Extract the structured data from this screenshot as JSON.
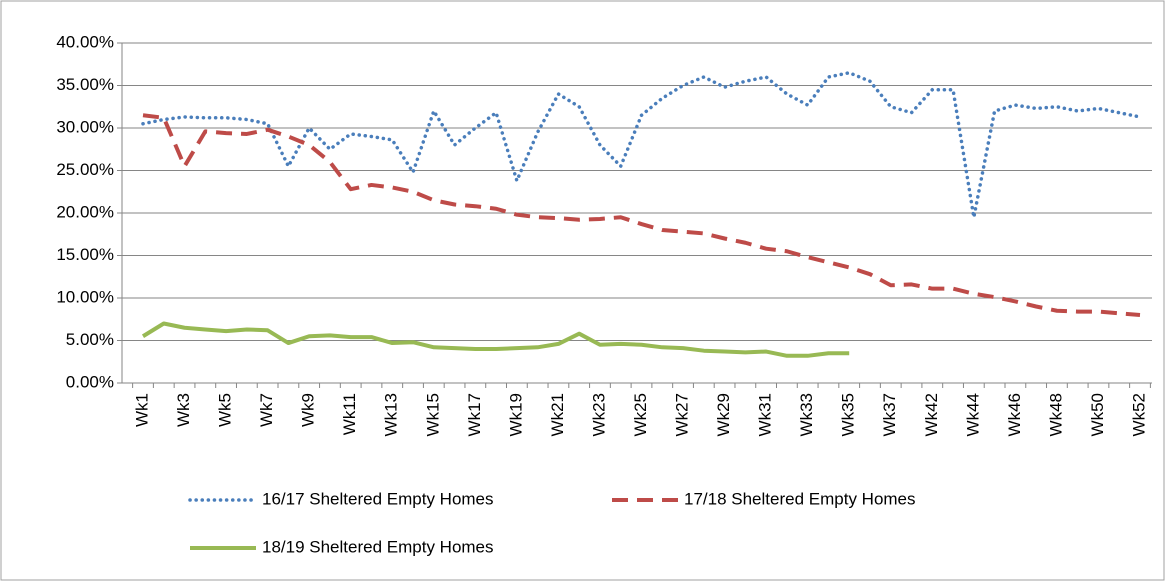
{
  "chart_data": {
    "type": "line",
    "categories": [
      "Wk1",
      null,
      "Wk3",
      null,
      "Wk5",
      null,
      "Wk7",
      null,
      "Wk9",
      null,
      "Wk11",
      null,
      "Wk13",
      null,
      "Wk15",
      null,
      "Wk17",
      null,
      "Wk19",
      null,
      "Wk21",
      null,
      "Wk23",
      null,
      "Wk25",
      null,
      "Wk27",
      null,
      "Wk29",
      null,
      "Wk31",
      null,
      "Wk33",
      null,
      "Wk35",
      null,
      "Wk37",
      null,
      "Wk42",
      null,
      "Wk44",
      null,
      "Wk46",
      null,
      "Wk48",
      null,
      "Wk50",
      null,
      "Wk52"
    ],
    "series": [
      {
        "name": "16/17 Sheltered Empty Homes",
        "color": "#4a7ebb",
        "style": "dotted",
        "values": [
          30.5,
          31.0,
          31.3,
          31.2,
          31.2,
          31.0,
          30.5,
          25.5,
          30.0,
          27.5,
          29.3,
          29.0,
          28.6,
          24.8,
          32.0,
          28.0,
          30.0,
          31.8,
          23.8,
          29.5,
          34.0,
          32.5,
          28.0,
          25.5,
          31.5,
          33.5,
          35.0,
          36.0,
          34.8,
          35.5,
          36.0,
          34.0,
          32.7,
          36.0,
          36.5,
          35.5,
          32.5,
          31.8,
          34.5,
          34.5,
          19.5,
          32.0,
          32.7,
          32.3,
          32.5,
          32.0,
          32.3,
          31.8,
          31.3
        ]
      },
      {
        "name": "17/18 Sheltered Empty Homes",
        "color": "#be4b48",
        "style": "dashed",
        "values": [
          31.5,
          31.2,
          25.5,
          29.6,
          29.4,
          29.3,
          29.8,
          29.0,
          28.0,
          26.0,
          22.8,
          23.3,
          23.0,
          22.5,
          21.5,
          21.0,
          20.8,
          20.5,
          19.8,
          19.5,
          19.4,
          19.2,
          19.3,
          19.5,
          18.7,
          18.0,
          17.8,
          17.6,
          17.0,
          16.5,
          15.8,
          15.5,
          14.8,
          14.2,
          13.6,
          12.8,
          11.5,
          11.6,
          11.1,
          11.1,
          10.5,
          10.1,
          9.6,
          9.0,
          8.5,
          8.4,
          8.4,
          8.2,
          8.0
        ]
      },
      {
        "name": "18/19 Sheltered Empty Homes",
        "color": "#98b954",
        "style": "solid",
        "values": [
          5.5,
          7.0,
          6.5,
          6.3,
          6.1,
          6.3,
          6.2,
          4.7,
          5.5,
          5.6,
          5.4,
          5.4,
          4.7,
          4.8,
          4.2,
          4.1,
          4.0,
          4.0,
          4.1,
          4.2,
          4.6,
          5.8,
          4.5,
          4.6,
          4.5,
          4.2,
          4.1,
          3.8,
          3.7,
          3.6,
          3.7,
          3.2,
          3.2,
          3.5,
          3.5,
          null,
          null,
          null,
          null,
          null,
          null,
          null,
          null,
          null,
          null,
          null,
          null,
          null,
          null
        ]
      }
    ],
    "ylim": [
      0,
      40
    ],
    "yticks": [
      {
        "value": 0,
        "label": "0.00%"
      },
      {
        "value": 5,
        "label": "5.00%"
      },
      {
        "value": 10,
        "label": "10.00%"
      },
      {
        "value": 15,
        "label": "15.00%"
      },
      {
        "value": 20,
        "label": "20.00%"
      },
      {
        "value": 25,
        "label": "25.00%"
      },
      {
        "value": 30,
        "label": "30.00%"
      },
      {
        "value": 35,
        "label": "35.00%"
      },
      {
        "value": 40,
        "label": "40.00%"
      }
    ],
    "grid": true,
    "legend": "bottom"
  }
}
